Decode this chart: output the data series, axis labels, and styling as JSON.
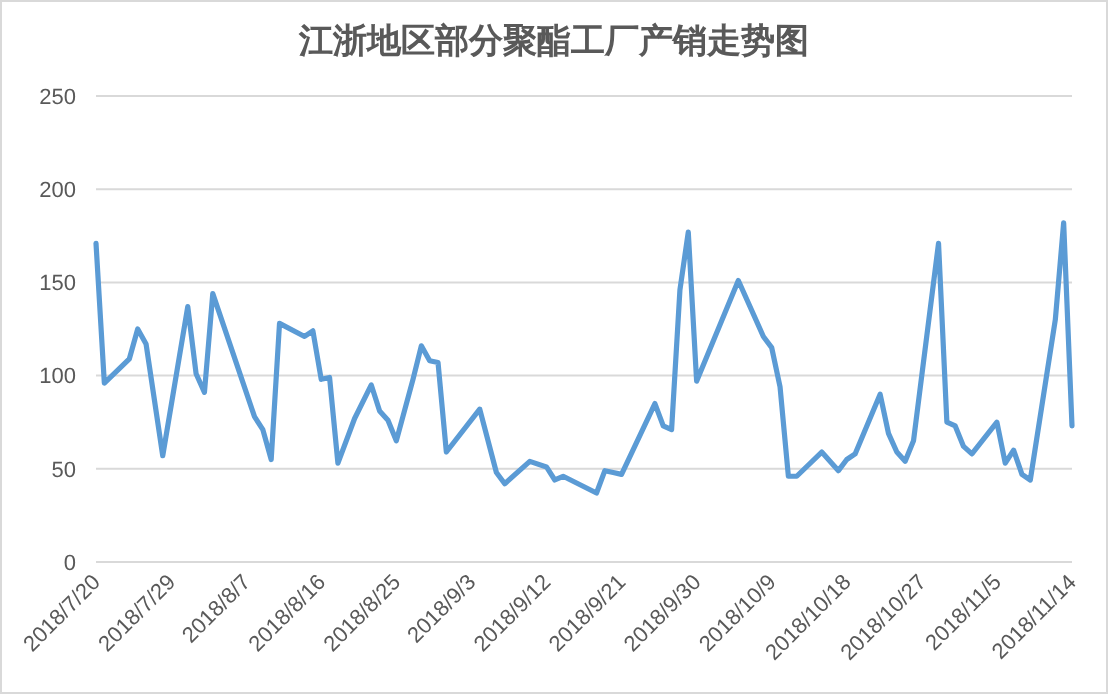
{
  "chart_data": {
    "type": "line",
    "title": "江浙地区部分聚酯工厂产销走势图",
    "x": [
      "2018-07-20",
      "2018-07-21",
      "2018-07-24",
      "2018-07-25",
      "2018-07-26",
      "2018-07-28",
      "2018-07-31",
      "2018-08-01",
      "2018-08-02",
      "2018-08-03",
      "2018-08-08",
      "2018-08-09",
      "2018-08-10",
      "2018-08-11",
      "2018-08-14",
      "2018-08-15",
      "2018-08-16",
      "2018-08-17",
      "2018-08-18",
      "2018-08-20",
      "2018-08-22",
      "2018-08-23",
      "2018-08-24",
      "2018-08-25",
      "2018-08-27",
      "2018-08-28",
      "2018-08-29",
      "2018-08-30",
      "2018-08-31",
      "2018-09-04",
      "2018-09-06",
      "2018-09-07",
      "2018-09-10",
      "2018-09-12",
      "2018-09-13",
      "2018-09-14",
      "2018-09-18",
      "2018-09-19",
      "2018-09-20",
      "2018-09-21",
      "2018-09-25",
      "2018-09-26",
      "2018-09-27",
      "2018-09-28",
      "2018-09-29",
      "2018-09-30",
      "2018-10-05",
      "2018-10-08",
      "2018-10-09",
      "2018-10-10",
      "2018-10-11",
      "2018-10-12",
      "2018-10-15",
      "2018-10-17",
      "2018-10-18",
      "2018-10-19",
      "2018-10-22",
      "2018-10-23",
      "2018-10-24",
      "2018-10-25",
      "2018-10-26",
      "2018-10-29",
      "2018-10-30",
      "2018-10-31",
      "2018-11-01",
      "2018-11-02",
      "2018-11-05",
      "2018-11-06",
      "2018-11-07",
      "2018-11-08",
      "2018-11-09",
      "2018-11-12",
      "2018-11-13",
      "2018-11-14"
    ],
    "series": [
      {
        "color": "#5b9bd5",
        "values": [
          171,
          96,
          109,
          125,
          117,
          57,
          137,
          101,
          91,
          144,
          78,
          71,
          55,
          128,
          121,
          124,
          98,
          99,
          53,
          77,
          95,
          81,
          76,
          65,
          98,
          116,
          108,
          107,
          59,
          82,
          48,
          42,
          54,
          51,
          44,
          46,
          37,
          49,
          48,
          47,
          85,
          73,
          71,
          146,
          177,
          97,
          151,
          121,
          115,
          94,
          46,
          46,
          59,
          49,
          55,
          58,
          90,
          69,
          59,
          54,
          65,
          171,
          75,
          73,
          62,
          58,
          75,
          53,
          60,
          47,
          44,
          130,
          182,
          73
        ]
      }
    ],
    "xlim": [
      "2018-07-20",
      "2018-11-14"
    ],
    "xticks": [
      {
        "value": "2018-07-20",
        "label": "2018/7/20"
      },
      {
        "value": "2018-07-29",
        "label": "2018/7/29"
      },
      {
        "value": "2018-08-07",
        "label": "2018/8/7"
      },
      {
        "value": "2018-08-16",
        "label": "2018/8/16"
      },
      {
        "value": "2018-08-25",
        "label": "2018/8/25"
      },
      {
        "value": "2018-09-03",
        "label": "2018/9/3"
      },
      {
        "value": "2018-09-12",
        "label": "2018/9/12"
      },
      {
        "value": "2018-09-21",
        "label": "2018/9/21"
      },
      {
        "value": "2018-09-30",
        "label": "2018/9/30"
      },
      {
        "value": "2018-10-09",
        "label": "2018/10/9"
      },
      {
        "value": "2018-10-18",
        "label": "2018/10/18"
      },
      {
        "value": "2018-10-27",
        "label": "2018/10/27"
      },
      {
        "value": "2018-11-05",
        "label": "2018/11/5"
      },
      {
        "value": "2018-11-14",
        "label": "2018/11/14"
      }
    ],
    "ylim": [
      0,
      250
    ],
    "yticks": [
      0,
      50,
      100,
      150,
      200,
      250
    ],
    "grid": "y",
    "marker": "none",
    "line_style": "solid"
  }
}
